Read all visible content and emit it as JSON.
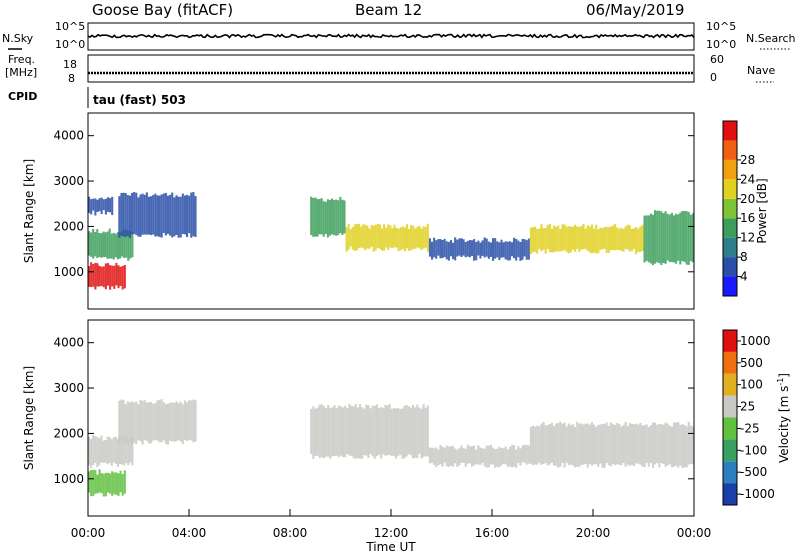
{
  "header": {
    "station": "Goose Bay (fitACF)",
    "beam": "Beam 12",
    "date": "06/May/2019"
  },
  "side_labels": {
    "nsky": "N.Sky",
    "nsearch": "N.Search",
    "freq_line1": "Freq.",
    "freq_line2": "[MHz]",
    "nave": "Nave",
    "cpid": "CPID"
  },
  "cpid_text": "tau (fast) 503",
  "noise_panel": {
    "left_ticks": [
      "10^5",
      "10^0"
    ],
    "right_ticks": [
      "10^5",
      "10^0"
    ]
  },
  "freq_panel": {
    "left_ticks": [
      "18",
      "8"
    ],
    "right_ticks": [
      "60",
      "0"
    ]
  },
  "chart_data": [
    {
      "type": "heatmap",
      "name": "power",
      "ylabel": "Slant Range [km]",
      "xlabel": "",
      "ylim": [
        180,
        4500
      ],
      "yticks": [
        1000,
        2000,
        3000,
        4000
      ],
      "colorbar": {
        "label": "Power [dB]",
        "ticks": [
          "4",
          "8",
          "12",
          "16",
          "20",
          "24",
          "28"
        ],
        "colors": [
          "#1a1aff",
          "#2a4fa8",
          "#2f7f8a",
          "#3c9e5c",
          "#7fc435",
          "#e0d020",
          "#f0a010",
          "#f06010",
          "#e01010"
        ]
      },
      "colors": {
        "low": "#2a4fa8",
        "mid": "#3c9e5c",
        "high": "#e0d020",
        "peak": "#e01010"
      },
      "regions": [
        {
          "t": [
            0.0,
            1.5
          ],
          "r": [
            650,
            1150
          ],
          "level": "peak"
        },
        {
          "t": [
            0.0,
            1.8
          ],
          "r": [
            1300,
            1900
          ],
          "level": "mid"
        },
        {
          "t": [
            0.0,
            1.0
          ],
          "r": [
            2300,
            2600
          ],
          "level": "low"
        },
        {
          "t": [
            1.2,
            4.3
          ],
          "r": [
            1800,
            2700
          ],
          "level": "low"
        },
        {
          "t": [
            8.8,
            10.2
          ],
          "r": [
            1800,
            2600
          ],
          "level": "mid"
        },
        {
          "t": [
            10.2,
            13.5
          ],
          "r": [
            1500,
            2000
          ],
          "level": "high"
        },
        {
          "t": [
            13.5,
            17.5
          ],
          "r": [
            1300,
            1700
          ],
          "level": "low"
        },
        {
          "t": [
            17.5,
            22.0
          ],
          "r": [
            1450,
            2000
          ],
          "level": "high"
        },
        {
          "t": [
            22.0,
            24.0
          ],
          "r": [
            1200,
            2300
          ],
          "level": "mid"
        }
      ]
    },
    {
      "type": "heatmap",
      "name": "velocity",
      "ylabel": "Slant Range [km]",
      "xlabel": "Time UT",
      "ylim": [
        180,
        4500
      ],
      "yticks": [
        1000,
        2000,
        3000,
        4000
      ],
      "xticks": [
        "00:00",
        "04:00",
        "08:00",
        "12:00",
        "16:00",
        "20:00",
        "00:00"
      ],
      "xlim": [
        0,
        24
      ],
      "colorbar": {
        "label": "Velocity [m s^-1]",
        "ticks": [
          "1000",
          "500",
          "100",
          "25",
          "-25",
          "-100",
          "-500",
          "-1000"
        ],
        "colors": [
          "#1a3fa8",
          "#2a7fbf",
          "#3aa060",
          "#60c040",
          "#c8c8c4",
          "#e0b020",
          "#f07010",
          "#e01010"
        ]
      },
      "colors": {
        "ground": "#c8c8c4",
        "positive": "#60c040",
        "negative": "#f0a010"
      },
      "regions": [
        {
          "t": [
            0.0,
            1.5
          ],
          "r": [
            650,
            1150
          ],
          "level": "positive"
        },
        {
          "t": [
            0.0,
            1.8
          ],
          "r": [
            1300,
            1900
          ],
          "level": "ground"
        },
        {
          "t": [
            1.2,
            4.3
          ],
          "r": [
            1800,
            2700
          ],
          "level": "ground"
        },
        {
          "t": [
            8.8,
            13.5
          ],
          "r": [
            1500,
            2600
          ],
          "level": "ground"
        },
        {
          "t": [
            13.5,
            17.5
          ],
          "r": [
            1300,
            1700
          ],
          "level": "ground"
        },
        {
          "t": [
            17.5,
            24.0
          ],
          "r": [
            1300,
            2200
          ],
          "level": "ground"
        }
      ]
    }
  ]
}
